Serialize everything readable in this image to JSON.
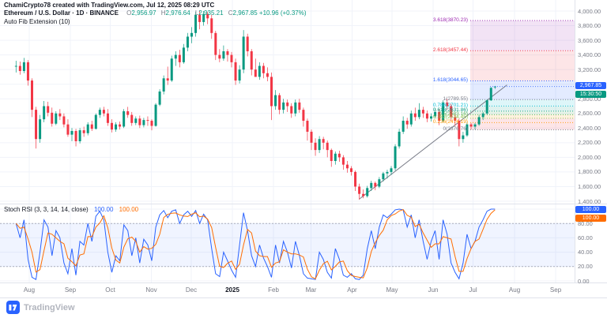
{
  "header": {
    "watermark": "ChamiCrypto78 created with TradingView.com, Jul 12, 2025 08:29 UTC",
    "symbol_line": "Ethereum / U.S. Dollar · 1D · BINANCE",
    "indicator": "Auto Fib Extension (10)",
    "ohlc": {
      "o_label": "O",
      "o": "2,956.97",
      "h_label": "H",
      "h": "2,976.64",
      "l_label": "L",
      "l": "2,935.21",
      "c_label": "C",
      "c": "2,967.85",
      "change": "+10.96 (+0.37%)"
    }
  },
  "price_badge": {
    "value": "2,967.85",
    "countdown": "15:30:50"
  },
  "price_axis": {
    "labels": [
      "4,000.00",
      "3,800.00",
      "3,600.00",
      "3,400.00",
      "3,200.00",
      "3,000.00",
      "2,800.00",
      "2,600.00",
      "2,400.00",
      "2,200.00",
      "2,000.00",
      "1,800.00",
      "1,600.00",
      "1,400.00"
    ]
  },
  "stoch": {
    "title": "Stoch RSI (3, 3, 14, 14, close)",
    "k_value": "100.00",
    "d_value": "100.00",
    "axis_labels": [
      "100.00",
      "80.00",
      "60.00",
      "40.00",
      "20.00",
      "0.00"
    ]
  },
  "time_axis": {
    "labels": [
      {
        "label": "Aug"
      },
      {
        "label": "Sep"
      },
      {
        "label": "Oct"
      },
      {
        "label": "Nov"
      },
      {
        "label": "Dec"
      },
      {
        "label": "2025",
        "major": true
      },
      {
        "label": "Feb"
      },
      {
        "label": "Mar"
      },
      {
        "label": "Apr"
      },
      {
        "label": "May"
      },
      {
        "label": "Jun"
      },
      {
        "label": "Jul"
      },
      {
        "label": "Aug"
      },
      {
        "label": "Sep"
      }
    ]
  },
  "footer": {
    "brand": "TradingView"
  },
  "chart_data": {
    "type": "candlestick",
    "title": "Ethereum / U.S. Dollar · 1D · BINANCE",
    "timeframe": "1D",
    "ylim": [
      1400,
      4000
    ],
    "x_range": [
      "Jul 2024",
      "Sep 2025"
    ],
    "up_color": "#089981",
    "down_color": "#f23645",
    "last_price": 2967.85,
    "candles": [
      [
        3240,
        3320,
        3160,
        3250
      ],
      [
        3250,
        3310,
        3130,
        3180
      ],
      [
        3180,
        3360,
        3150,
        3300
      ],
      [
        3300,
        3330,
        2980,
        3050
      ],
      [
        3050,
        3080,
        2550,
        2650
      ],
      [
        2650,
        2690,
        2120,
        2250
      ],
      [
        2250,
        2580,
        2200,
        2520
      ],
      [
        2520,
        2770,
        2480,
        2700
      ],
      [
        2700,
        2760,
        2560,
        2610
      ],
      [
        2610,
        2680,
        2420,
        2460
      ],
      [
        2460,
        2630,
        2440,
        2600
      ],
      [
        2600,
        2660,
        2510,
        2560
      ],
      [
        2560,
        2600,
        2410,
        2450
      ],
      [
        2450,
        2520,
        2280,
        2310
      ],
      [
        2310,
        2400,
        2220,
        2360
      ],
      [
        2360,
        2390,
        2150,
        2220
      ],
      [
        2220,
        2400,
        2190,
        2370
      ],
      [
        2370,
        2420,
        2280,
        2330
      ],
      [
        2330,
        2480,
        2300,
        2450
      ],
      [
        2450,
        2500,
        2360,
        2390
      ],
      [
        2390,
        2600,
        2380,
        2580
      ],
      [
        2580,
        2680,
        2540,
        2650
      ],
      [
        2650,
        2690,
        2560,
        2600
      ],
      [
        2600,
        2660,
        2430,
        2470
      ],
      [
        2470,
        2520,
        2340,
        2380
      ],
      [
        2380,
        2480,
        2350,
        2450
      ],
      [
        2450,
        2490,
        2380,
        2420
      ],
      [
        2420,
        2660,
        2400,
        2630
      ],
      [
        2630,
        2690,
        2540,
        2580
      ],
      [
        2580,
        2620,
        2430,
        2470
      ],
      [
        2470,
        2560,
        2440,
        2530
      ],
      [
        2530,
        2570,
        2400,
        2440
      ],
      [
        2440,
        2540,
        2410,
        2510
      ],
      [
        2510,
        2560,
        2430,
        2500
      ],
      [
        2500,
        2520,
        2370,
        2430
      ],
      [
        2430,
        2740,
        2420,
        2720
      ],
      [
        2720,
        2930,
        2700,
        2900
      ],
      [
        2900,
        3120,
        2860,
        3080
      ],
      [
        3080,
        3240,
        2990,
        3050
      ],
      [
        3050,
        3390,
        3030,
        3350
      ],
      [
        3350,
        3450,
        3250,
        3400
      ],
      [
        3400,
        3470,
        3230,
        3300
      ],
      [
        3300,
        3550,
        3280,
        3500
      ],
      [
        3500,
        3700,
        3450,
        3650
      ],
      [
        3650,
        3780,
        3560,
        3700
      ],
      [
        3700,
        3990,
        3650,
        3950
      ],
      [
        3950,
        4010,
        3750,
        3850
      ],
      [
        3850,
        4000,
        3800,
        3960
      ],
      [
        3960,
        3990,
        3820,
        3900
      ],
      [
        3900,
        3950,
        3620,
        3700
      ],
      [
        3700,
        3730,
        3330,
        3400
      ],
      [
        3400,
        3480,
        3300,
        3350
      ],
      [
        3350,
        3530,
        3320,
        3450
      ],
      [
        3450,
        3480,
        3310,
        3400
      ],
      [
        3400,
        3440,
        3230,
        3300
      ],
      [
        3300,
        3350,
        2990,
        3050
      ],
      [
        3050,
        3260,
        3010,
        3200
      ],
      [
        3200,
        3740,
        3150,
        3650
      ],
      [
        3650,
        3690,
        3380,
        3450
      ],
      [
        3450,
        3480,
        3120,
        3200
      ],
      [
        3200,
        3350,
        3100,
        3100
      ],
      [
        3100,
        3300,
        3060,
        3250
      ],
      [
        3250,
        3290,
        3080,
        3150
      ],
      [
        3150,
        3230,
        3040,
        3100
      ],
      [
        3100,
        3160,
        2510,
        2700
      ],
      [
        2700,
        2920,
        2650,
        2850
      ],
      [
        2850,
        2880,
        2590,
        2650
      ],
      [
        2650,
        2800,
        2600,
        2750
      ],
      [
        2750,
        2790,
        2620,
        2700
      ],
      [
        2700,
        2740,
        2540,
        2600
      ],
      [
        2600,
        2790,
        2560,
        2750
      ],
      [
        2750,
        2800,
        2610,
        2650
      ],
      [
        2650,
        2680,
        2420,
        2500
      ],
      [
        2500,
        2530,
        2230,
        2350
      ],
      [
        2350,
        2380,
        2100,
        2200
      ],
      [
        2200,
        2260,
        2020,
        2100
      ],
      [
        2100,
        2290,
        2060,
        2250
      ],
      [
        2250,
        2280,
        2110,
        2200
      ],
      [
        2200,
        2230,
        2000,
        2100
      ],
      [
        2100,
        2120,
        1870,
        1950
      ],
      [
        1950,
        2080,
        1900,
        2050
      ],
      [
        2050,
        2090,
        1940,
        2000
      ],
      [
        2000,
        2030,
        1830,
        1900
      ],
      [
        1900,
        1950,
        1790,
        1850
      ],
      [
        1850,
        1880,
        1750,
        1800
      ],
      [
        1800,
        1820,
        1540,
        1600
      ],
      [
        1600,
        1640,
        1420,
        1500
      ],
      [
        1500,
        1560,
        1440,
        1470
      ],
      [
        1470,
        1610,
        1450,
        1580
      ],
      [
        1580,
        1680,
        1540,
        1650
      ],
      [
        1650,
        1670,
        1550,
        1600
      ],
      [
        1600,
        1730,
        1580,
        1700
      ],
      [
        1700,
        1800,
        1670,
        1780
      ],
      [
        1780,
        1830,
        1710,
        1800
      ],
      [
        1800,
        1880,
        1760,
        1850
      ],
      [
        1850,
        2180,
        1820,
        2150
      ],
      [
        2150,
        2390,
        2120,
        2350
      ],
      [
        2350,
        2560,
        2320,
        2500
      ],
      [
        2500,
        2540,
        2390,
        2450
      ],
      [
        2450,
        2640,
        2420,
        2600
      ],
      [
        2600,
        2680,
        2500,
        2550
      ],
      [
        2550,
        2740,
        2520,
        2650
      ],
      [
        2650,
        2690,
        2540,
        2600
      ],
      [
        2600,
        2640,
        2480,
        2530
      ],
      [
        2530,
        2600,
        2490,
        2560
      ],
      [
        2560,
        2670,
        2530,
        2620
      ],
      [
        2620,
        2660,
        2440,
        2500
      ],
      [
        2500,
        2780,
        2480,
        2750
      ],
      [
        2750,
        2800,
        2650,
        2700
      ],
      [
        2700,
        2730,
        2500,
        2550
      ],
      [
        2550,
        2590,
        2430,
        2500
      ],
      [
        2500,
        2530,
        2150,
        2250
      ],
      [
        2250,
        2350,
        2200,
        2300
      ],
      [
        2300,
        2480,
        2280,
        2450
      ],
      [
        2450,
        2470,
        2380,
        2420
      ],
      [
        2420,
        2470,
        2380,
        2450
      ],
      [
        2450,
        2580,
        2430,
        2550
      ],
      [
        2550,
        2620,
        2510,
        2600
      ],
      [
        2600,
        2790,
        2580,
        2780
      ],
      [
        2780,
        2960,
        2770,
        2950
      ],
      [
        2956.97,
        2976.64,
        2935.21,
        2967.85
      ]
    ],
    "fib_levels": [
      {
        "label": "3.618(3870.23)",
        "value": 3870.23,
        "color": "#9c27b0",
        "band": "#9c27b0"
      },
      {
        "label": "2.618(3457.44)",
        "value": 3457.44,
        "color": "#f23645",
        "band": "#f23645"
      },
      {
        "label": "1.618(3044.65)",
        "value": 3044.65,
        "color": "#2962ff",
        "band": "#2962ff"
      },
      {
        "label": "1(2789.55)",
        "value": 2789.55,
        "color": "#787b86",
        "band": "#00bcd4"
      },
      {
        "label": "0.786(2701.21)",
        "value": 2701.21,
        "color": "#00bcd4",
        "band": "#089981"
      },
      {
        "label": "0.618(2631.86)",
        "value": 2631.86,
        "color": "#089981",
        "band": "#4caf50"
      },
      {
        "label": "0.5(2583.16)",
        "value": 2583.16,
        "color": "#4caf50",
        "band": "#ff9800"
      },
      {
        "label": "0.382(2534.45)",
        "value": 2534.45,
        "color": "#8bc34a",
        "band": "#f23645"
      },
      {
        "label": "0.236(2474.19)",
        "value": 2474.19,
        "color": "#ff9800",
        "band": "#f23645"
      },
      {
        "label": "0(2376.76)",
        "value": 2376.76,
        "color": "#787b86",
        "band": null
      }
    ],
    "trend_line": {
      "from_index": 86,
      "from_price": 1430,
      "to_index": 123,
      "to_price": 2990
    },
    "stoch_rsi": {
      "type": "line",
      "range": [
        0,
        100
      ],
      "upper_band": 80,
      "lower_band": 20,
      "k_color": "#2962ff",
      "d_color": "#ff6d00",
      "k": [
        80,
        60,
        85,
        30,
        5,
        2,
        40,
        85,
        75,
        35,
        70,
        60,
        25,
        10,
        45,
        8,
        55,
        50,
        80,
        55,
        90,
        97,
        85,
        40,
        12,
        35,
        28,
        78,
        70,
        35,
        60,
        25,
        58,
        50,
        28,
        75,
        92,
        98,
        88,
        97,
        99,
        80,
        92,
        97,
        90,
        98,
        80,
        93,
        85,
        45,
        10,
        6,
        40,
        28,
        15,
        5,
        50,
        95,
        70,
        35,
        20,
        50,
        32,
        20,
        5,
        50,
        25,
        55,
        40,
        18,
        55,
        35,
        10,
        4,
        3,
        2,
        40,
        30,
        12,
        4,
        45,
        30,
        8,
        5,
        10,
        3,
        2,
        8,
        45,
        70,
        45,
        75,
        92,
        88,
        93,
        99,
        100,
        99,
        75,
        92,
        60,
        85,
        55,
        30,
        55,
        70,
        30,
        85,
        65,
        25,
        12,
        3,
        25,
        65,
        45,
        55,
        75,
        85,
        97,
        100,
        100
      ]
    }
  }
}
